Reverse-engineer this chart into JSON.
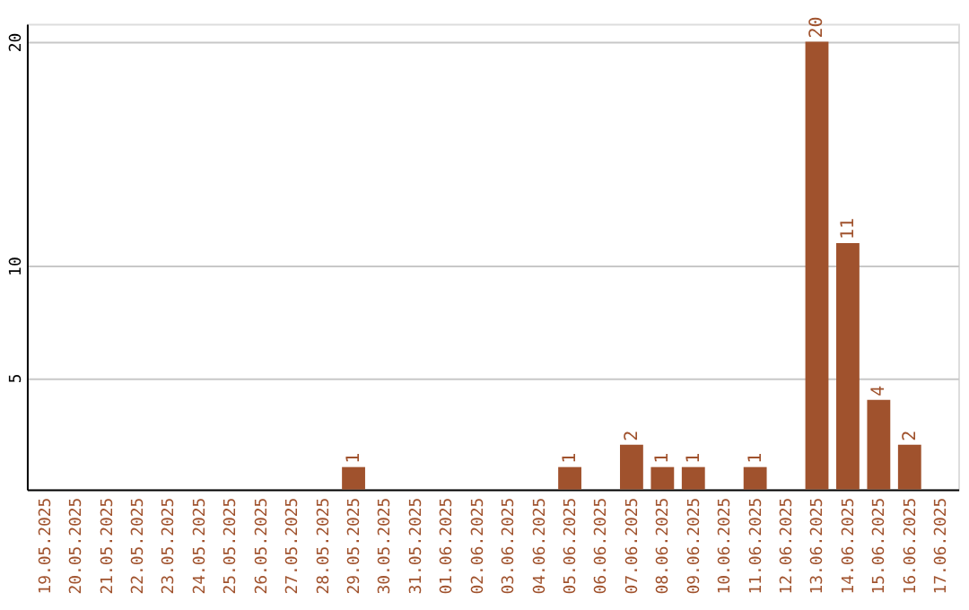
{
  "chart_data": {
    "type": "bar",
    "categories": [
      "19.05.2025",
      "20.05.2025",
      "21.05.2025",
      "22.05.2025",
      "23.05.2025",
      "24.05.2025",
      "25.05.2025",
      "26.05.2025",
      "27.05.2025",
      "28.05.2025",
      "29.05.2025",
      "30.05.2025",
      "31.05.2025",
      "01.06.2025",
      "02.06.2025",
      "03.06.2025",
      "04.06.2025",
      "05.06.2025",
      "06.06.2025",
      "07.06.2025",
      "08.06.2025",
      "09.06.2025",
      "10.06.2025",
      "11.06.2025",
      "12.06.2025",
      "13.06.2025",
      "14.06.2025",
      "15.06.2025",
      "16.06.2025",
      "17.06.2025"
    ],
    "values": [
      0,
      0,
      0,
      0,
      0,
      0,
      0,
      0,
      0,
      0,
      1,
      0,
      0,
      0,
      0,
      0,
      0,
      1,
      0,
      2,
      1,
      1,
      0,
      1,
      0,
      20,
      11,
      4,
      2,
      0
    ],
    "color": "#a0522d",
    "value_labels": [
      null,
      null,
      null,
      null,
      null,
      null,
      null,
      null,
      null,
      null,
      "1",
      null,
      null,
      null,
      null,
      null,
      null,
      "1",
      null,
      "2",
      "1",
      "1",
      null,
      "1",
      null,
      "20",
      "11",
      "4",
      "2",
      null
    ],
    "ylim": [
      0,
      20.8
    ],
    "yticks": [
      5,
      10,
      20
    ],
    "grid": "y"
  }
}
